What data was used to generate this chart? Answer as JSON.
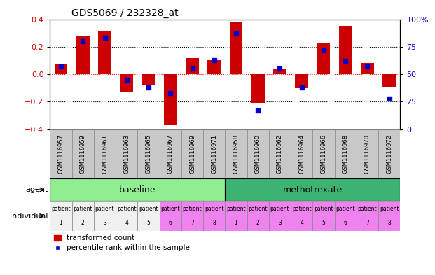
{
  "title": "GDS5069 / 232328_at",
  "samples": [
    "GSM1116957",
    "GSM1116959",
    "GSM1116961",
    "GSM1116963",
    "GSM1116965",
    "GSM1116967",
    "GSM1116969",
    "GSM1116971",
    "GSM1116958",
    "GSM1116960",
    "GSM1116962",
    "GSM1116964",
    "GSM1116966",
    "GSM1116968",
    "GSM1116970",
    "GSM1116972"
  ],
  "transformed_count": [
    0.07,
    0.28,
    0.31,
    -0.13,
    -0.08,
    -0.37,
    0.12,
    0.1,
    0.38,
    -0.21,
    0.04,
    -0.1,
    0.23,
    0.35,
    0.08,
    -0.09
  ],
  "percentile_rank": [
    57,
    80,
    83,
    45,
    38,
    33,
    55,
    63,
    87,
    17,
    55,
    38,
    72,
    62,
    57,
    28
  ],
  "bar_color": "#cc0000",
  "dot_color": "#0000cc",
  "ylim_left": [
    -0.4,
    0.4
  ],
  "ylim_right": [
    0,
    100
  ],
  "yticks_left": [
    -0.4,
    -0.2,
    0.0,
    0.2,
    0.4
  ],
  "yticks_right": [
    0,
    25,
    50,
    75,
    100
  ],
  "ytick_labels_right": [
    "0",
    "25",
    "50",
    "75",
    "100%"
  ],
  "hlines": [
    0.2,
    0.0,
    -0.2
  ],
  "hline_colors": [
    "black",
    "red",
    "black"
  ],
  "hline_styles": [
    "dotted",
    "dotted",
    "dotted"
  ],
  "agent_labels": [
    "baseline",
    "methotrexate"
  ],
  "agent_color_baseline": "#90ee90",
  "agent_color_methotrexate": "#3cb371",
  "indiv_color_white": "#f0f0f0",
  "indiv_color_pink": "#ee82ee",
  "indiv_baseline_colors": [
    "#f0f0f0",
    "#f0f0f0",
    "#f0f0f0",
    "#f0f0f0",
    "#f0f0f0",
    "#ee82ee",
    "#ee82ee",
    "#ee82ee"
  ],
  "indiv_methotrexate_colors": [
    "#ee82ee",
    "#ee82ee",
    "#ee82ee",
    "#ee82ee",
    "#ee82ee",
    "#ee82ee",
    "#ee82ee",
    "#ee82ee"
  ],
  "legend_bar_label": "transformed count",
  "legend_dot_label": "percentile rank within the sample",
  "axis_label_color_left": "#cc0000",
  "axis_label_color_right": "#0000cc",
  "sample_bg_color": "#c8c8c8"
}
